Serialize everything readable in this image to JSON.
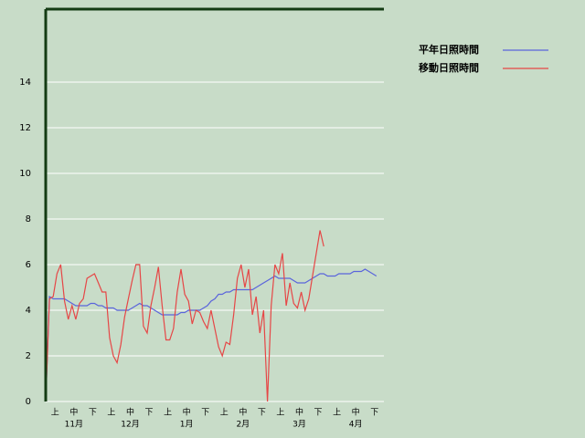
{
  "chart_data": {
    "type": "line",
    "dekads": [
      "上",
      "中",
      "下",
      "上",
      "中",
      "下",
      "上",
      "中",
      "下",
      "上",
      "中",
      "下",
      "上",
      "中",
      "下",
      "上",
      "中",
      "下"
    ],
    "months": [
      "11月",
      "12月",
      "1月",
      "2月",
      "3月",
      "4月"
    ],
    "ylim": [
      0,
      17.2
    ],
    "yticks": [
      0,
      2,
      4,
      6,
      8,
      10,
      12,
      14
    ],
    "grid": true,
    "series": [
      {
        "name": "平年日照時間",
        "color": "#5a64dc",
        "values": [
          0,
          4.6,
          4.5,
          4.5,
          4.5,
          4.5,
          4.4,
          4.3,
          4.2,
          4.2,
          4.2,
          4.2,
          4.3,
          4.3,
          4.2,
          4.2,
          4.1,
          4.1,
          4.1,
          4.0,
          4.0,
          4.0,
          4.0,
          4.1,
          4.2,
          4.3,
          4.2,
          4.2,
          4.1,
          4.0,
          3.9,
          3.8,
          3.8,
          3.8,
          3.8,
          3.8,
          3.9,
          3.9,
          4.0,
          4.0,
          4.0,
          4.0,
          4.1,
          4.2,
          4.4,
          4.5,
          4.7,
          4.7,
          4.8,
          4.8,
          4.9,
          4.9,
          4.9,
          4.9,
          4.9,
          4.9,
          5.0,
          5.1,
          5.2,
          5.3,
          5.4,
          5.5,
          5.4,
          5.4,
          5.4,
          5.4,
          5.3,
          5.2,
          5.2,
          5.2,
          5.3,
          5.4,
          5.5,
          5.6,
          5.6,
          5.5,
          5.5,
          5.5,
          5.6,
          5.6,
          5.6,
          5.6,
          5.7,
          5.7,
          5.7,
          5.8,
          5.7,
          5.6,
          5.5
        ]
      },
      {
        "name": "移動日照時間",
        "color": "#e64646",
        "values": [
          0,
          4.5,
          4.6,
          5.6,
          6.0,
          4.4,
          3.6,
          4.2,
          3.6,
          4.3,
          4.5,
          5.4,
          5.5,
          5.6,
          5.2,
          4.8,
          4.8,
          2.8,
          2.0,
          1.7,
          2.5,
          3.7,
          4.5,
          5.3,
          6.0,
          6.0,
          3.3,
          3.0,
          4.2,
          5.0,
          5.9,
          4.2,
          2.7,
          2.7,
          3.2,
          4.8,
          5.8,
          4.7,
          4.4,
          3.4,
          4.0,
          3.9,
          3.5,
          3.2,
          4.0,
          3.2,
          2.4,
          2.0,
          2.6,
          2.5,
          3.8,
          5.4,
          6.0,
          5.0,
          5.8,
          3.8,
          4.6,
          3.0,
          4.0,
          0,
          4.2,
          6.0,
          5.6,
          6.5,
          4.2,
          5.2,
          4.3,
          4.1,
          4.8,
          4.0,
          4.5,
          5.5,
          6.5,
          7.5,
          6.8
        ]
      }
    ]
  }
}
